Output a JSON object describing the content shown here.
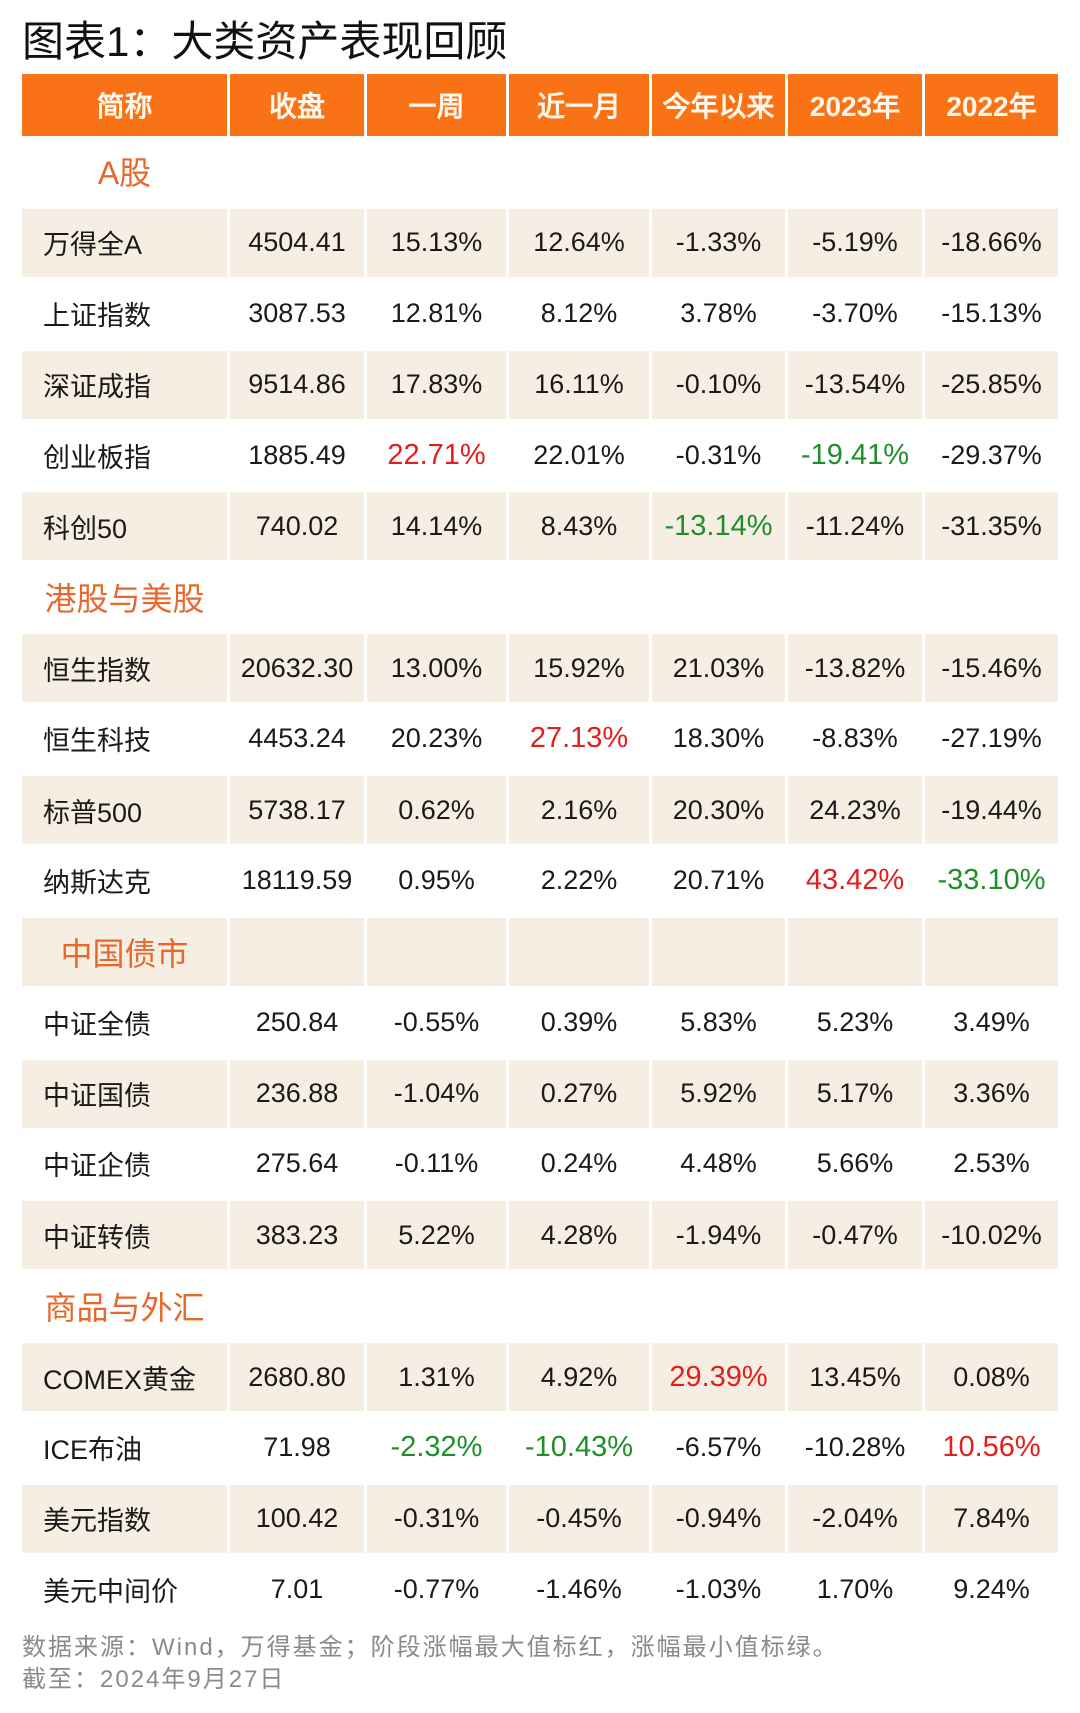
{
  "title": "图表1：大类资产表现回顾",
  "colors": {
    "header_bg": "#F97316",
    "header_text": "#FFF8EE",
    "row_tint": "#F7EEE3",
    "section_label": "#E8682B",
    "max_red": "#E0201E",
    "min_green": "#1F8F2A",
    "footer_text": "#8A8A8A"
  },
  "chart_data": {
    "type": "table",
    "title": "图表1：大类资产表现回顾",
    "columns": [
      "简称",
      "收盘",
      "一周",
      "近一月",
      "今年以来",
      "2023年",
      "2022年"
    ],
    "sections": [
      {
        "label": "A股",
        "rows": [
          {
            "name": "万得全A",
            "cells": [
              "4504.41",
              "15.13%",
              "12.64%",
              "-1.33%",
              "-5.19%",
              "-18.66%"
            ],
            "hl": [
              "",
              "",
              "",
              "",
              "",
              ""
            ]
          },
          {
            "name": "上证指数",
            "cells": [
              "3087.53",
              "12.81%",
              "8.12%",
              "3.78%",
              "-3.70%",
              "-15.13%"
            ],
            "hl": [
              "",
              "",
              "",
              "",
              "",
              ""
            ]
          },
          {
            "name": "深证成指",
            "cells": [
              "9514.86",
              "17.83%",
              "16.11%",
              "-0.10%",
              "-13.54%",
              "-25.85%"
            ],
            "hl": [
              "",
              "",
              "",
              "",
              "",
              ""
            ]
          },
          {
            "name": "创业板指",
            "cells": [
              "1885.49",
              "22.71%",
              "22.01%",
              "-0.31%",
              "-19.41%",
              "-29.37%"
            ],
            "hl": [
              "",
              "max",
              "",
              "",
              "min",
              ""
            ]
          },
          {
            "name": "科创50",
            "cells": [
              "740.02",
              "14.14%",
              "8.43%",
              "-13.14%",
              "-11.24%",
              "-31.35%"
            ],
            "hl": [
              "",
              "",
              "",
              "min",
              "",
              ""
            ]
          }
        ]
      },
      {
        "label": "港股与美股",
        "rows": [
          {
            "name": "恒生指数",
            "cells": [
              "20632.30",
              "13.00%",
              "15.92%",
              "21.03%",
              "-13.82%",
              "-15.46%"
            ],
            "hl": [
              "",
              "",
              "",
              "",
              "",
              ""
            ]
          },
          {
            "name": "恒生科技",
            "cells": [
              "4453.24",
              "20.23%",
              "27.13%",
              "18.30%",
              "-8.83%",
              "-27.19%"
            ],
            "hl": [
              "",
              "",
              "max",
              "",
              "",
              ""
            ]
          },
          {
            "name": "标普500",
            "cells": [
              "5738.17",
              "0.62%",
              "2.16%",
              "20.30%",
              "24.23%",
              "-19.44%"
            ],
            "hl": [
              "",
              "",
              "",
              "",
              "",
              ""
            ]
          },
          {
            "name": "纳斯达克",
            "cells": [
              "18119.59",
              "0.95%",
              "2.22%",
              "20.71%",
              "43.42%",
              "-33.10%"
            ],
            "hl": [
              "",
              "",
              "",
              "",
              "max",
              "min"
            ]
          }
        ]
      },
      {
        "label": "中国债市",
        "rows": [
          {
            "name": "中证全债",
            "cells": [
              "250.84",
              "-0.55%",
              "0.39%",
              "5.83%",
              "5.23%",
              "3.49%"
            ],
            "hl": [
              "",
              "",
              "",
              "",
              "",
              ""
            ]
          },
          {
            "name": "中证国债",
            "cells": [
              "236.88",
              "-1.04%",
              "0.27%",
              "5.92%",
              "5.17%",
              "3.36%"
            ],
            "hl": [
              "",
              "",
              "",
              "",
              "",
              ""
            ]
          },
          {
            "name": "中证企债",
            "cells": [
              "275.64",
              "-0.11%",
              "0.24%",
              "4.48%",
              "5.66%",
              "2.53%"
            ],
            "hl": [
              "",
              "",
              "",
              "",
              "",
              ""
            ]
          },
          {
            "name": "中证转债",
            "cells": [
              "383.23",
              "5.22%",
              "4.28%",
              "-1.94%",
              "-0.47%",
              "-10.02%"
            ],
            "hl": [
              "",
              "",
              "",
              "",
              "",
              ""
            ]
          }
        ]
      },
      {
        "label": "商品与外汇",
        "rows": [
          {
            "name": "COMEX黄金",
            "cells": [
              "2680.80",
              "1.31%",
              "4.92%",
              "29.39%",
              "13.45%",
              "0.08%"
            ],
            "hl": [
              "",
              "",
              "",
              "max",
              "",
              ""
            ]
          },
          {
            "name": "ICE布油",
            "cells": [
              "71.98",
              "-2.32%",
              "-10.43%",
              "-6.57%",
              "-10.28%",
              "10.56%"
            ],
            "hl": [
              "",
              "min",
              "min",
              "",
              "",
              "max"
            ]
          },
          {
            "name": "美元指数",
            "cells": [
              "100.42",
              "-0.31%",
              "-0.45%",
              "-0.94%",
              "-2.04%",
              "7.84%"
            ],
            "hl": [
              "",
              "",
              "",
              "",
              "",
              ""
            ]
          },
          {
            "name": "美元中间价",
            "cells": [
              "7.01",
              "-0.77%",
              "-1.46%",
              "-1.03%",
              "1.70%",
              "9.24%"
            ],
            "hl": [
              "",
              "",
              "",
              "",
              "",
              ""
            ]
          }
        ]
      }
    ],
    "highlight_rule": {
      "max": "red",
      "min": "green"
    }
  },
  "footer": {
    "source": "数据来源：Wind，万得基金；阶段涨幅最大值标红，涨幅最小值标绿。",
    "date": "截至：2024年9月27日"
  }
}
